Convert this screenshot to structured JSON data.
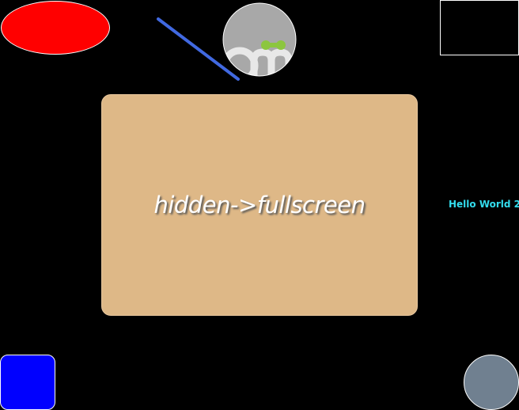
{
  "panel": {
    "label": "hidden->fullscreen",
    "color": "#deb887"
  },
  "hello": {
    "text": "Hello World 2",
    "color": "#33ddee"
  },
  "shapes": {
    "ellipse_color": "#ff0000",
    "line_color": "#4169e1",
    "square_color": "#0000ff",
    "circle_color": "#708090",
    "logo_icon": "logo-icon"
  }
}
